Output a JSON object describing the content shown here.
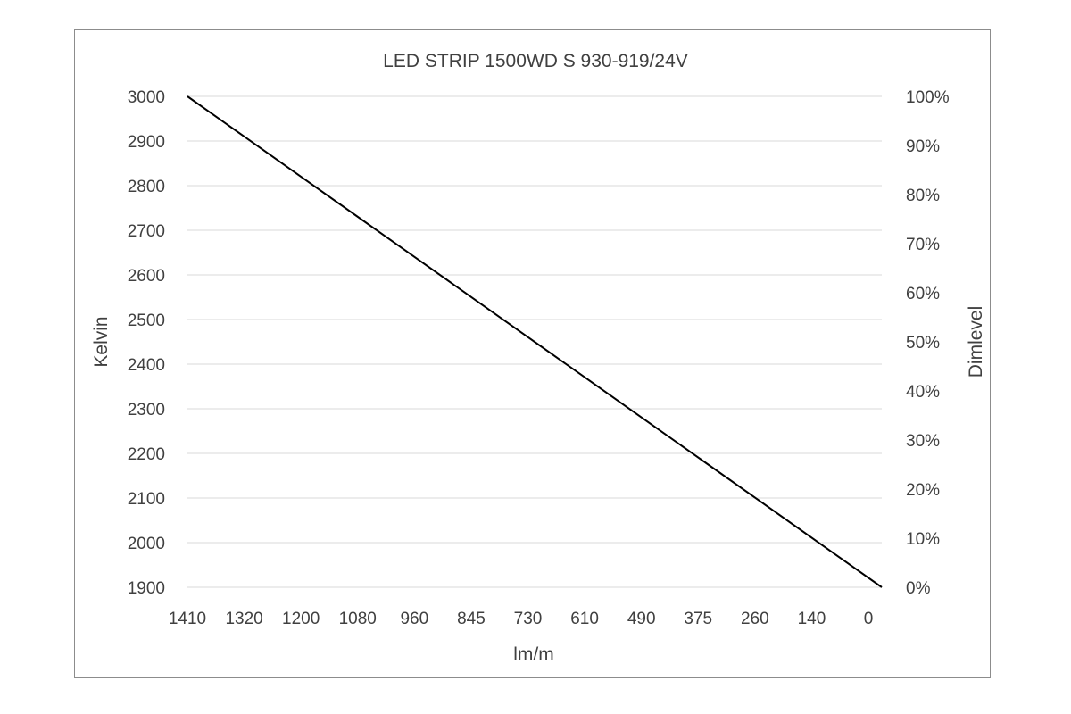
{
  "chart_data": {
    "type": "line",
    "title": "LED STRIP 1500WD S 930-919/24V",
    "xlabel": "lm/m",
    "ylabel": "Kelvin",
    "y2label": "Dimlevel",
    "categories": [
      "1410",
      "1320",
      "1200",
      "1080",
      "960",
      "845",
      "730",
      "610",
      "490",
      "375",
      "260",
      "140",
      "0"
    ],
    "ylim": [
      1900,
      3000
    ],
    "y_ticks": [
      3000,
      2900,
      2800,
      2700,
      2600,
      2500,
      2400,
      2300,
      2200,
      2100,
      2000,
      1900
    ],
    "y2lim": [
      0,
      100
    ],
    "y2_ticks": [
      "100%",
      "90%",
      "80%",
      "70%",
      "60%",
      "50%",
      "40%",
      "30%",
      "20%",
      "10%",
      "0%"
    ],
    "series": [
      {
        "values": [
          3000,
          2908.3,
          2816.7,
          2725,
          2633.3,
          2541.7,
          2450,
          2358.3,
          2266.7,
          2175,
          2083.3,
          1991.7,
          1900
        ]
      }
    ],
    "grid": true,
    "legend": "none",
    "line_color": "#000000"
  }
}
